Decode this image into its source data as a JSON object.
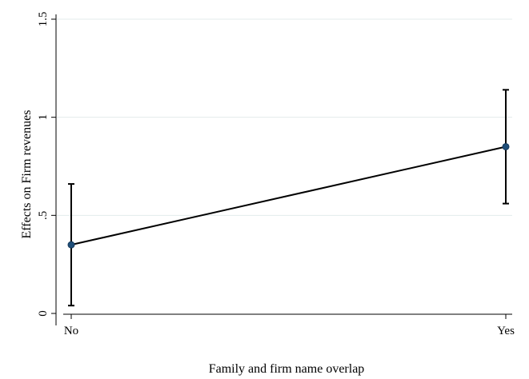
{
  "chart_data": {
    "type": "line",
    "title": "",
    "xlabel": "Family and firm name overlap",
    "ylabel": "Effects on Firm revenues",
    "categories": [
      "No",
      "Yes"
    ],
    "ylim": [
      0,
      1.5
    ],
    "yticks": [
      0,
      0.5,
      1,
      1.5
    ],
    "ytick_labels": [
      "0",
      ".5",
      "1",
      "1.5"
    ],
    "grid": true,
    "series": [
      {
        "values": [
          0.35,
          0.85
        ],
        "ci_low": [
          0.04,
          0.56
        ],
        "ci_high": [
          0.66,
          1.14
        ]
      }
    ],
    "colors": {
      "line": "#000000",
      "marker": "#1f4e79",
      "grid": "#e3ebeb",
      "error_bar": "#000000"
    }
  }
}
